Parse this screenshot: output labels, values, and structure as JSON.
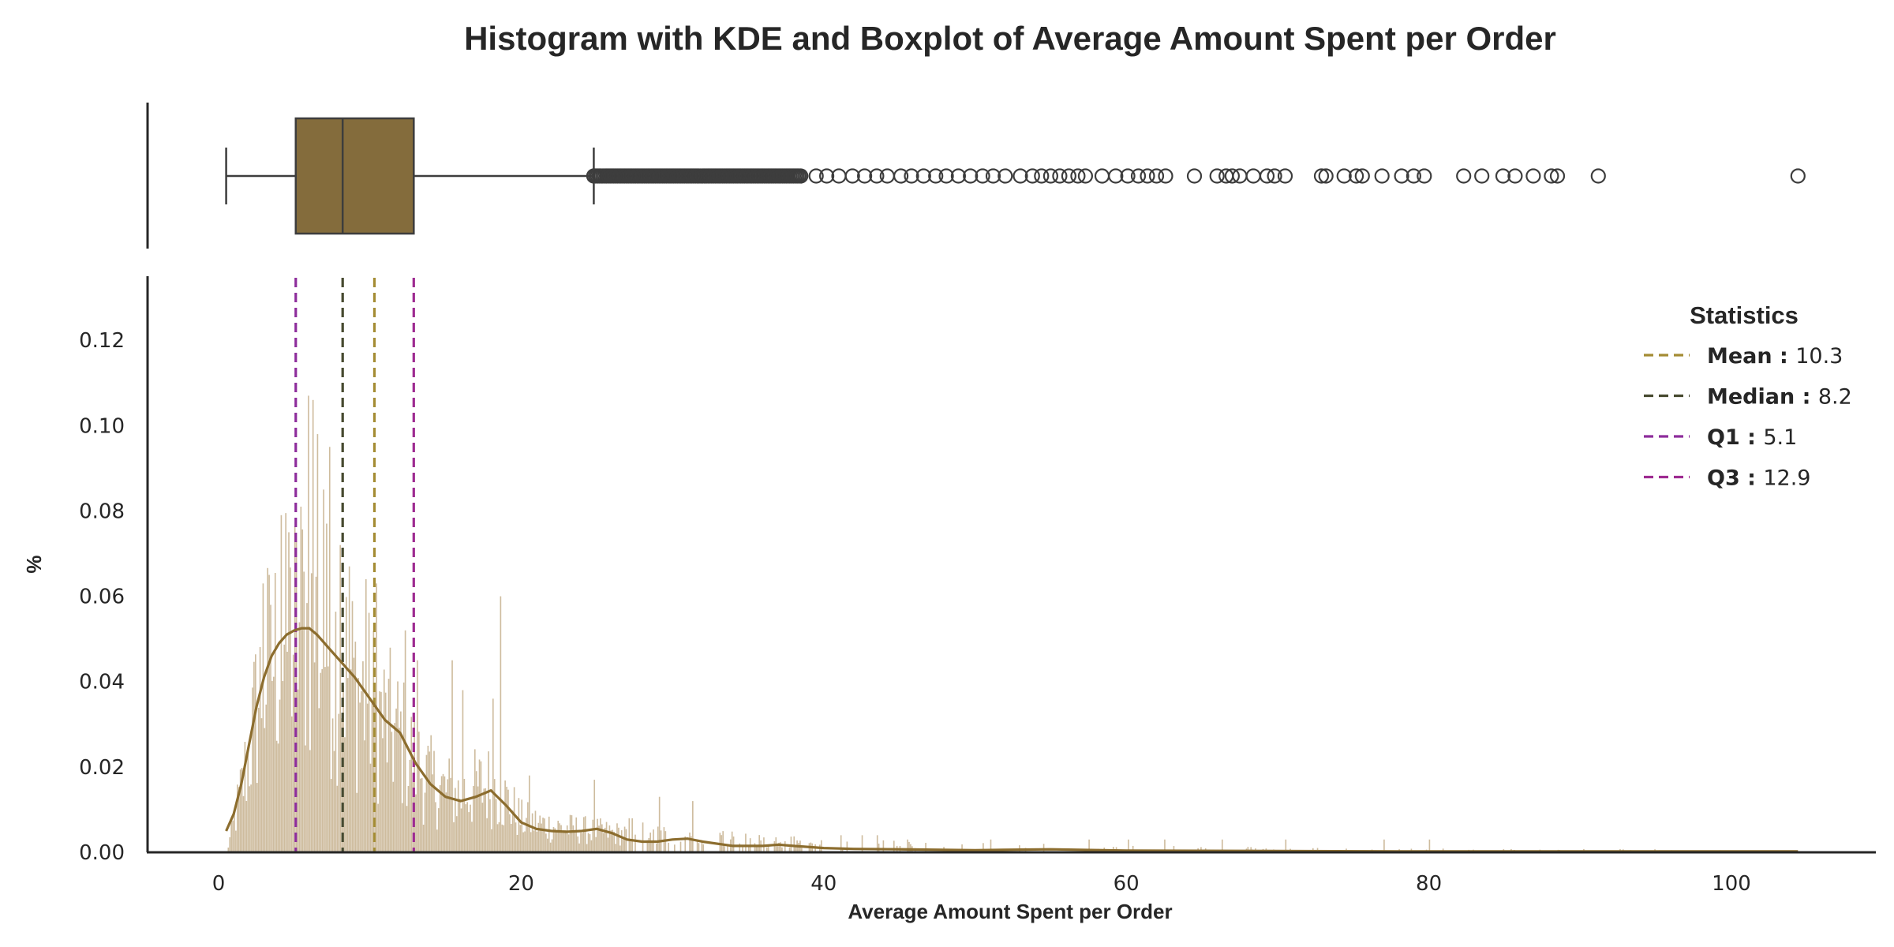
{
  "chart_data": {
    "type": "histogram",
    "title": "Histogram with KDE and Boxplot of Average Amount Spent per Order",
    "xlabel": "Average Amount Spent per Order",
    "ylabel": "%",
    "xlim": [
      -4.7,
      109.5
    ],
    "ylim": [
      0,
      0.135
    ],
    "xticks": [
      0,
      20,
      40,
      60,
      80,
      100
    ],
    "xtick_labels": [
      "0",
      "20",
      "40",
      "60",
      "80",
      "100"
    ],
    "yticks": [
      0,
      0.02,
      0.04,
      0.06,
      0.08,
      0.1,
      0.12
    ],
    "ytick_labels": [
      "0.00",
      "0.02",
      "0.04",
      "0.06",
      "0.08",
      "0.10",
      "0.12"
    ],
    "grid": false,
    "colors": {
      "bars": "#c5b08d",
      "kde": "#8c6d2e",
      "box_fill": "#846c3c",
      "box_edge": "#3d3d3d",
      "mean": "#a48c34",
      "median": "#474a30",
      "q1": "#8d2c9b",
      "q3": "#9e2b91"
    },
    "boxplot": {
      "whisker_low": 0.5,
      "q1": 5.1,
      "median": 8.2,
      "q3": 12.9,
      "whisker_high": 24.8,
      "outliers_dense_range": [
        24.8,
        38.5
      ],
      "outliers": [
        39.5,
        40.2,
        41.0,
        41.9,
        42.7,
        43.5,
        44.2,
        45.1,
        45.8,
        46.6,
        47.4,
        48.1,
        48.9,
        49.7,
        50.5,
        51.2,
        52.0,
        53.0,
        53.8,
        54.4,
        55.0,
        55.6,
        56.2,
        56.8,
        57.3,
        58.4,
        59.3,
        60.1,
        60.8,
        61.4,
        62.0,
        62.6,
        64.5,
        66.0,
        66.6,
        67.0,
        67.5,
        68.4,
        69.3,
        69.8,
        70.5,
        72.9,
        73.2,
        74.4,
        75.2,
        75.6,
        76.9,
        78.2,
        79.0,
        79.7,
        82.3,
        83.5,
        84.9,
        85.7,
        86.9,
        88.1,
        88.5,
        91.2,
        104.4
      ]
    },
    "kde": {
      "x": [
        0.5,
        1,
        1.5,
        2,
        2.5,
        3,
        3.5,
        4,
        4.5,
        5,
        5.5,
        6,
        6.5,
        7,
        7.5,
        8,
        9,
        10,
        11,
        12,
        13,
        14,
        15,
        16,
        17,
        18,
        19,
        20,
        21,
        22,
        23,
        24,
        25,
        26,
        27,
        28,
        29,
        30,
        31,
        32,
        34,
        36,
        37,
        38,
        40,
        42,
        45,
        50,
        55,
        60,
        70,
        80,
        90,
        104.4
      ],
      "y": [
        0.005,
        0.009,
        0.016,
        0.025,
        0.034,
        0.041,
        0.046,
        0.049,
        0.051,
        0.052,
        0.0525,
        0.0525,
        0.051,
        0.049,
        0.047,
        0.045,
        0.041,
        0.036,
        0.031,
        0.028,
        0.021,
        0.016,
        0.013,
        0.012,
        0.013,
        0.0145,
        0.011,
        0.007,
        0.0055,
        0.005,
        0.0048,
        0.005,
        0.0055,
        0.0045,
        0.003,
        0.0025,
        0.0025,
        0.003,
        0.0032,
        0.0025,
        0.0015,
        0.0015,
        0.0018,
        0.0015,
        0.001,
        0.0008,
        0.0007,
        0.0005,
        0.0007,
        0.0004,
        0.0003,
        0.0002,
        0.0002,
        0.0002
      ]
    },
    "histogram": {
      "bin_width": 0.1,
      "x_range": [
        0.5,
        104.4
      ],
      "note_values": "approximate envelope of bar heights (fraction units)",
      "envelope_x": [
        0.5,
        1,
        1.5,
        2,
        2.5,
        3,
        3.5,
        4,
        5,
        6,
        7,
        8,
        9,
        10,
        11,
        12,
        13,
        14,
        15,
        16,
        17,
        18,
        19,
        20,
        22,
        24,
        26,
        30,
        35,
        40,
        50,
        60,
        70,
        80,
        90,
        104.4
      ],
      "envelope_y": [
        0.0,
        0.01,
        0.02,
        0.032,
        0.045,
        0.055,
        0.06,
        0.063,
        0.068,
        0.07,
        0.065,
        0.06,
        0.052,
        0.046,
        0.04,
        0.035,
        0.028,
        0.022,
        0.019,
        0.018,
        0.02,
        0.021,
        0.016,
        0.01,
        0.008,
        0.007,
        0.006,
        0.004,
        0.003,
        0.002,
        0.0015,
        0.001,
        0.0008,
        0.0006,
        0.0005,
        0.0004
      ],
      "peaks": [
        [
          2.9,
          0.063
        ],
        [
          3.4,
          0.058
        ],
        [
          4.1,
          0.079
        ],
        [
          4.6,
          0.075
        ],
        [
          5.4,
          0.081
        ],
        [
          5.9,
          0.107
        ],
        [
          6.2,
          0.106
        ],
        [
          6.5,
          0.098
        ],
        [
          6.9,
          0.085
        ],
        [
          7.3,
          0.095
        ],
        [
          8.0,
          0.072
        ],
        [
          8.6,
          0.067
        ],
        [
          9.7,
          0.064
        ],
        [
          10.4,
          0.063
        ],
        [
          12.3,
          0.052
        ],
        [
          13.1,
          0.045
        ],
        [
          15.4,
          0.045
        ],
        [
          16.1,
          0.038
        ],
        [
          18.1,
          0.036
        ],
        [
          18.6,
          0.06
        ],
        [
          20.5,
          0.018
        ],
        [
          24.8,
          0.017
        ],
        [
          29.1,
          0.013
        ],
        [
          31.3,
          0.012
        ],
        [
          41.1,
          0.004
        ],
        [
          42.5,
          0.004
        ],
        [
          43.5,
          0.004
        ],
        [
          45.5,
          0.003
        ],
        [
          51.0,
          0.003
        ],
        [
          57.5,
          0.003
        ],
        [
          60.1,
          0.003
        ],
        [
          62.5,
          0.003
        ],
        [
          66.3,
          0.003
        ],
        [
          70.5,
          0.003
        ],
        [
          77.0,
          0.003
        ],
        [
          80.0,
          0.003
        ]
      ]
    },
    "legend": {
      "title": "Statistics",
      "placement": "top-right",
      "items": [
        {
          "name": "Mean",
          "value": "10.3",
          "x": 10.3,
          "color": "#a48c34"
        },
        {
          "name": "Median",
          "value": "8.2",
          "x": 8.2,
          "color": "#474a30"
        },
        {
          "name": "Q1",
          "value": "5.1",
          "x": 5.1,
          "color": "#8d2c9b"
        },
        {
          "name": "Q3",
          "value": "12.9",
          "x": 12.9,
          "color": "#9e2b91"
        }
      ]
    }
  }
}
